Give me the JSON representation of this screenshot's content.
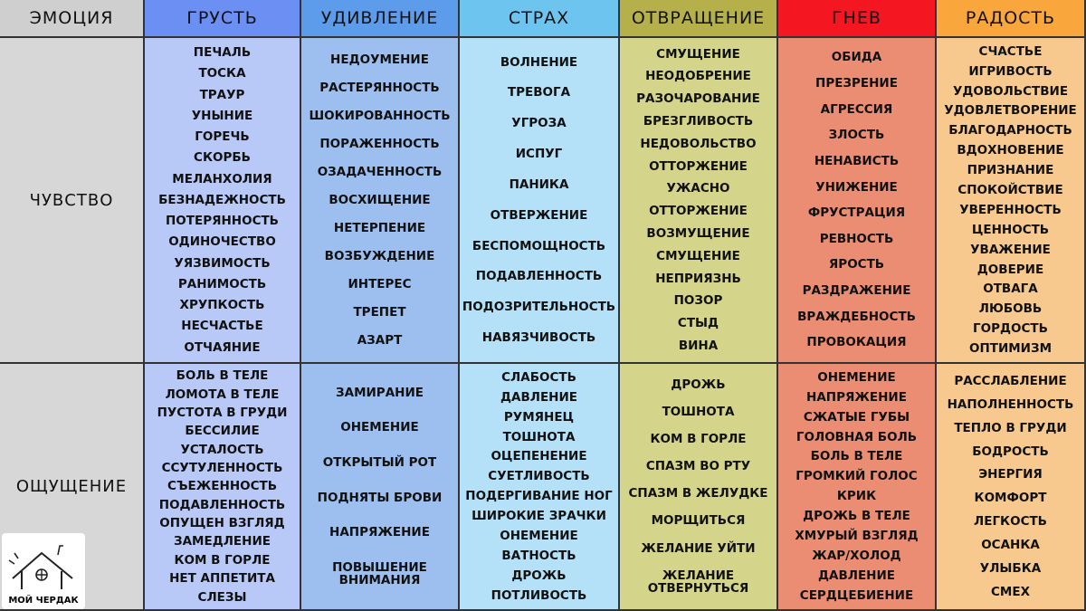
{
  "table": {
    "header": [
      "ЭМОЦИЯ",
      "ГРУСТЬ",
      "УДИВЛЕНИЕ",
      "СТРАХ",
      "ОТВРАЩЕНИЕ",
      "ГНЕВ",
      "РАДОСТЬ"
    ],
    "rows": [
      {
        "label": "ЧУВСТВО",
        "cells": [
          [
            "ПЕЧАЛЬ",
            "ТОСКА",
            "ТРАУР",
            "УНЫНИЕ",
            "ГОРЕЧЬ",
            "СКОРБЬ",
            "МЕЛАНХОЛИЯ",
            "БЕЗНАДЕЖНОСТЬ",
            "ПОТЕРЯННОСТЬ",
            "ОДИНОЧЕСТВО",
            "УЯЗВИМОСТЬ",
            "РАНИМОСТЬ",
            "ХРУПКОСТЬ",
            "НЕСЧАСТЬЕ",
            "ОТЧАЯНИЕ"
          ],
          [
            "НЕДОУМЕНИЕ",
            "РАСТЕРЯННОСТЬ",
            "ШОКИРОВАННОСТЬ",
            "ПОРАЖЕННОСТЬ",
            "ОЗАДАЧЕННОСТЬ",
            "ВОСХИЩЕНИЕ",
            "НЕТЕРПЕНИЕ",
            "ВОЗБУЖДЕНИЕ",
            "ИНТЕРЕС",
            "ТРЕПЕТ",
            "АЗАРТ"
          ],
          [
            "ВОЛНЕНИЕ",
            "ТРЕВОГА",
            "УГРОЗА",
            "ИСПУГ",
            "ПАНИКА",
            "ОТВЕРЖЕНИЕ",
            "БЕСПОМОЩНОСТЬ",
            "ПОДАВЛЕННОСТЬ",
            "ПОДОЗРИТЕЛЬНОСТЬ",
            "НАВЯЗЧИВОСТЬ"
          ],
          [
            "СМУЩЕНИЕ",
            "НЕОДОБРЕНИЕ",
            "РАЗОЧАРОВАНИЕ",
            "БРЕЗГЛИВОСТЬ",
            "НЕДОВОЛЬСТВО",
            "ОТТОРЖЕНИЕ",
            "УЖАСНО",
            "ОТТОРЖЕНИЕ",
            "ВОЗМУЩЕНИЕ",
            "СМУЩЕНИЕ",
            "НЕПРИЯЗНЬ",
            "ПОЗОР",
            "СТЫД",
            "ВИНА"
          ],
          [
            "ОБИДА",
            "ПРЕЗРЕНИЕ",
            "АГРЕССИЯ",
            "ЗЛОСТЬ",
            "НЕНАВИСТЬ",
            "УНИЖЕНИЕ",
            "ФРУСТРАЦИЯ",
            "РЕВНОСТЬ",
            "ЯРОСТЬ",
            "РАЗДРАЖЕНИЕ",
            "ВРАЖДЕБНОСТЬ",
            "ПРОВОКАЦИЯ"
          ],
          [
            "СЧАСТЬЕ",
            "ИГРИВОСТЬ",
            "УДОВОЛЬСТВИЕ",
            "УДОВЛЕТВОРЕНИЕ",
            "БЛАГОДАРНОСТЬ",
            "ВДОХНОВЕНИЕ",
            "ПРИЗНАНИЕ",
            "СПОКОЙСТВИЕ",
            "УВЕРЕННОСТЬ",
            "ЦЕННОСТЬ",
            "УВАЖЕНИЕ",
            "ДОВЕРИЕ",
            "ОТВАГА",
            "ЛЮБОВЬ",
            "ГОРДОСТЬ",
            "ОПТИМИЗМ"
          ]
        ]
      },
      {
        "label": "ОЩУЩЕНИЕ",
        "cells": [
          [
            "БОЛЬ В ТЕЛЕ",
            "ЛОМОТА В ТЕЛЕ",
            "ПУСТОТА В ГРУДИ",
            "БЕССИЛИЕ",
            "УСТАЛОСТЬ",
            "ССУТУЛЕННОСТЬ",
            "СЪЕЖЕННОСТЬ",
            "ПОДАВЛЕННОСТЬ",
            "ОПУЩЕН ВЗГЛЯД",
            "ЗАМЕДЛЕНИЕ",
            "КОМ В ГОРЛЕ",
            "НЕТ АППЕТИТА",
            "СЛЕЗЫ"
          ],
          [
            "ЗАМИРАНИЕ",
            "ОНЕМЕНИЕ",
            "ОТКРЫТЫЙ РОТ",
            "ПОДНЯТЫ БРОВИ",
            "НАПРЯЖЕНИЕ",
            "ПОВЫШЕНИЕ ВНИМАНИЯ"
          ],
          [
            "СЛАБОСТЬ",
            "ДАВЛЕНИЕ",
            "РУМЯНЕЦ",
            "ТОШНОТА",
            "ОЦЕПЕНЕНИЕ",
            "СУЕТЛИВОСТЬ",
            "ПОДЕРГИВАНИЕ НОГ",
            "ШИРОКИЕ ЗРАЧКИ",
            "ОНЕМЕНИЕ",
            "ВАТНОСТЬ",
            "ДРОЖЬ",
            "ПОТЛИВОСТЬ"
          ],
          [
            "ДРОЖЬ",
            "ТОШНОТА",
            "КОМ В ГОРЛЕ",
            "СПАЗМ ВО РТУ",
            "СПАЗМ В ЖЕЛУДКЕ",
            "МОРЩИТЬСЯ",
            "ЖЕЛАНИЕ УЙТИ",
            "ЖЕЛАНИЕ ОТВЕРНУТЬСЯ"
          ],
          [
            "ОНЕМЕНИЕ",
            "НАПРЯЖЕНИЕ",
            "СЖАТЫЕ ГУБЫ",
            "ГОЛОВНАЯ БОЛЬ",
            "БОЛЬ В ТЕЛЕ",
            "ГРОМКИЙ ГОЛОС",
            "КРИК",
            "ДРОЖЬ В ТЕЛЕ",
            "ХМУРЫЙ ВЗГЛЯД",
            "ЖАР/ХОЛОД",
            "ДАВЛЕНИЕ",
            "СЕРДЦЕБИЕНИЕ"
          ],
          [
            "РАССЛАБЛЕНИЕ",
            "НАПОЛНЕННОСТЬ",
            "ТЕПЛО В ГРУДИ",
            "БОДРОСТЬ",
            "ЭНЕРГИЯ",
            "КОМФОРТ",
            "ЛЕГКОСТЬ",
            "ОСАНКА",
            "УЛЫБКА",
            "СМЕХ"
          ]
        ]
      }
    ]
  },
  "logo": {
    "text": "МОЙ ЧЕРДАК"
  }
}
